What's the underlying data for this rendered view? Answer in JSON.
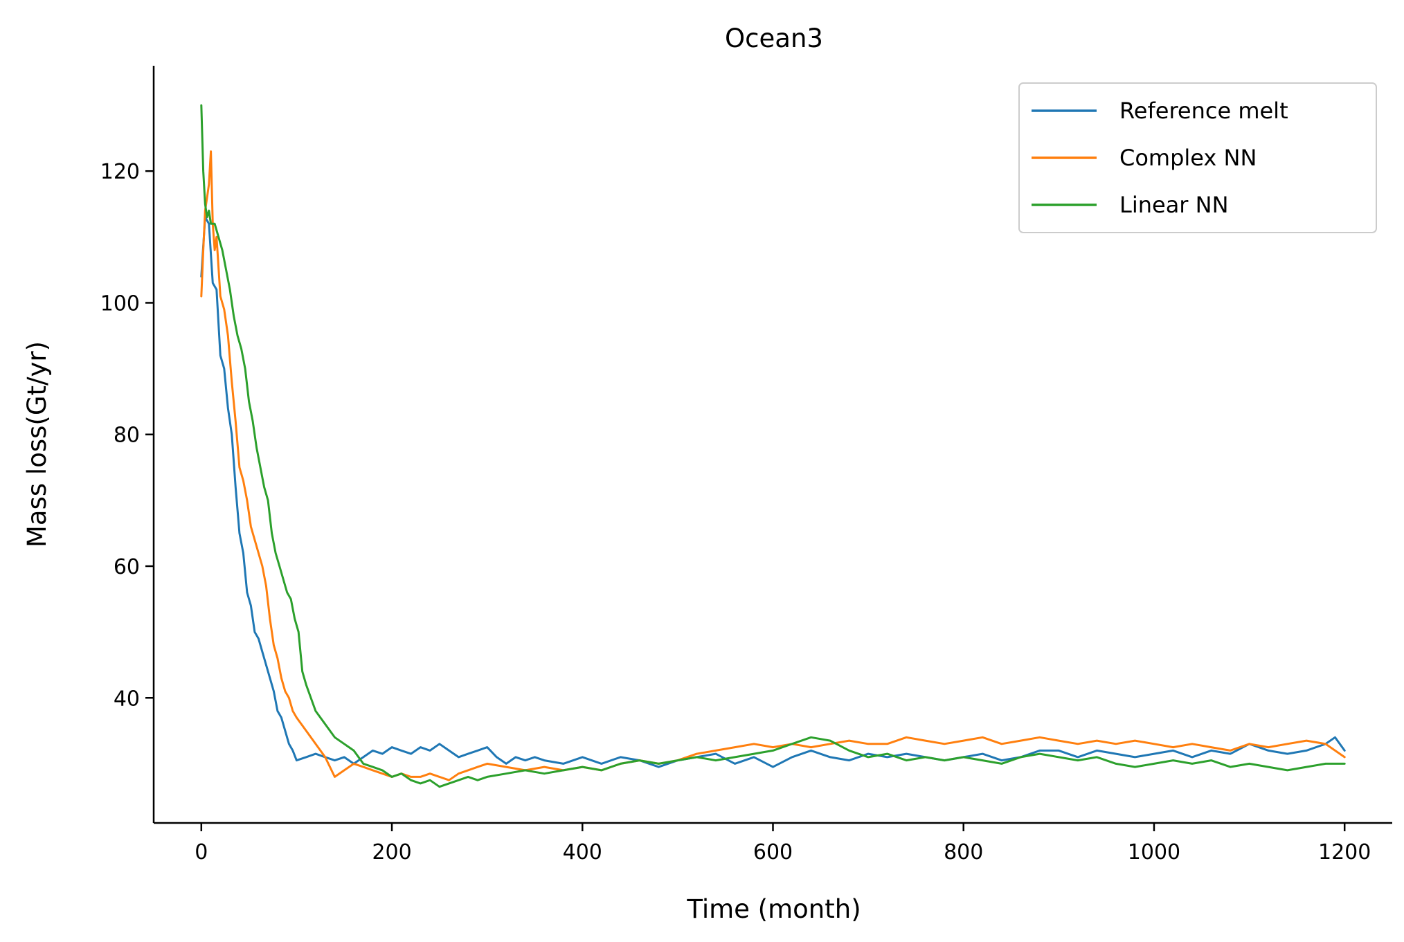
{
  "chart_data": {
    "type": "line",
    "title": "Ocean3",
    "xlabel": "Time (month)",
    "ylabel": "Mass loss(Gt/yr)",
    "xlim": [
      -50,
      1250
    ],
    "ylim": [
      21,
      136
    ],
    "xticks": [
      0,
      200,
      400,
      600,
      800,
      1000,
      1200
    ],
    "yticks": [
      40,
      60,
      80,
      100,
      120
    ],
    "grid": false,
    "legend_position": "top-right",
    "series": [
      {
        "name": "Reference melt",
        "color": "#1f77b4",
        "x": [
          0,
          4,
          8,
          12,
          16,
          20,
          24,
          28,
          32,
          36,
          40,
          44,
          48,
          52,
          56,
          60,
          64,
          68,
          72,
          76,
          80,
          84,
          88,
          92,
          96,
          100,
          110,
          120,
          130,
          140,
          150,
          160,
          170,
          180,
          190,
          200,
          210,
          220,
          230,
          240,
          250,
          260,
          270,
          280,
          290,
          300,
          310,
          320,
          330,
          340,
          350,
          360,
          380,
          400,
          420,
          440,
          460,
          480,
          500,
          520,
          540,
          560,
          580,
          600,
          620,
          640,
          660,
          680,
          700,
          720,
          740,
          760,
          780,
          800,
          820,
          840,
          860,
          880,
          900,
          920,
          940,
          960,
          980,
          1000,
          1020,
          1040,
          1060,
          1080,
          1100,
          1120,
          1140,
          1160,
          1180,
          1190,
          1200
        ],
        "values": [
          104,
          113,
          112,
          103,
          102,
          92,
          90,
          84,
          80,
          72,
          65,
          62,
          56,
          54,
          50,
          49,
          47,
          45,
          43,
          41,
          38,
          37,
          35,
          33,
          32,
          30.5,
          31,
          31.5,
          31,
          30.5,
          31,
          30,
          31,
          32,
          31.5,
          32.5,
          32,
          31.5,
          32.5,
          32,
          33,
          32,
          31,
          31.5,
          32,
          32.5,
          31,
          30,
          31,
          30.5,
          31,
          30.5,
          30,
          31,
          30,
          31,
          30.5,
          29.5,
          30.5,
          31,
          31.5,
          30,
          31,
          29.5,
          31,
          32,
          31,
          30.5,
          31.5,
          31,
          31.5,
          31,
          30.5,
          31,
          31.5,
          30.5,
          31,
          32,
          32,
          31,
          32,
          31.5,
          31,
          31.5,
          32,
          31,
          32,
          31.5,
          33,
          32,
          31.5,
          32,
          33,
          34,
          32
        ]
      },
      {
        "name": "Complex NN",
        "color": "#ff7f0e",
        "x": [
          0,
          2,
          4,
          6,
          8,
          10,
          12,
          14,
          16,
          20,
          24,
          28,
          32,
          36,
          40,
          44,
          48,
          52,
          56,
          60,
          64,
          68,
          72,
          76,
          80,
          84,
          88,
          92,
          96,
          100,
          110,
          120,
          130,
          140,
          150,
          160,
          170,
          180,
          190,
          200,
          210,
          220,
          230,
          240,
          250,
          260,
          270,
          280,
          290,
          300,
          320,
          340,
          360,
          380,
          400,
          420,
          440,
          460,
          480,
          500,
          520,
          540,
          560,
          580,
          600,
          620,
          640,
          660,
          680,
          700,
          720,
          740,
          760,
          780,
          800,
          820,
          840,
          860,
          880,
          900,
          920,
          940,
          960,
          980,
          1000,
          1020,
          1040,
          1060,
          1080,
          1100,
          1120,
          1140,
          1160,
          1180,
          1200
        ],
        "values": [
          101,
          108,
          114,
          116,
          118,
          123,
          112,
          108,
          110,
          101,
          99,
          95,
          88,
          82,
          75,
          73,
          70,
          66,
          64,
          62,
          60,
          57,
          52,
          48,
          46,
          43,
          41,
          40,
          38,
          37,
          35,
          33,
          31,
          28,
          29,
          30,
          29.5,
          29,
          28.5,
          28,
          28.5,
          28,
          28,
          28.5,
          28,
          27.5,
          28.5,
          29,
          29.5,
          30,
          29.5,
          29,
          29.5,
          29,
          29.5,
          29,
          30,
          30.5,
          30,
          30.5,
          31.5,
          32,
          32.5,
          33,
          32.5,
          33,
          32.5,
          33,
          33.5,
          33,
          33,
          34,
          33.5,
          33,
          33.5,
          34,
          33,
          33.5,
          34,
          33.5,
          33,
          33.5,
          33,
          33.5,
          33,
          32.5,
          33,
          32.5,
          32,
          33,
          32.5,
          33,
          33.5,
          33,
          31
        ]
      },
      {
        "name": "Linear NN",
        "color": "#2ca02c",
        "x": [
          0,
          2,
          4,
          6,
          8,
          10,
          14,
          18,
          22,
          26,
          30,
          34,
          38,
          42,
          46,
          50,
          54,
          58,
          62,
          66,
          70,
          74,
          78,
          82,
          86,
          90,
          94,
          98,
          102,
          106,
          110,
          120,
          130,
          140,
          150,
          160,
          170,
          180,
          190,
          200,
          210,
          220,
          230,
          240,
          250,
          260,
          270,
          280,
          290,
          300,
          320,
          340,
          360,
          380,
          400,
          420,
          440,
          460,
          480,
          500,
          520,
          540,
          560,
          580,
          600,
          620,
          640,
          660,
          680,
          700,
          720,
          740,
          760,
          780,
          800,
          820,
          840,
          860,
          880,
          900,
          920,
          940,
          960,
          980,
          1000,
          1020,
          1040,
          1060,
          1080,
          1100,
          1120,
          1140,
          1160,
          1180,
          1200
        ],
        "values": [
          130,
          120,
          115,
          113,
          114,
          112,
          112,
          110,
          108,
          105,
          102,
          98,
          95,
          93,
          90,
          85,
          82,
          78,
          75,
          72,
          70,
          65,
          62,
          60,
          58,
          56,
          55,
          52,
          50,
          44,
          42,
          38,
          36,
          34,
          33,
          32,
          30,
          29.5,
          29,
          28,
          28.5,
          27.5,
          27,
          27.5,
          26.5,
          27,
          27.5,
          28,
          27.5,
          28,
          28.5,
          29,
          28.5,
          29,
          29.5,
          29,
          30,
          30.5,
          30,
          30.5,
          31,
          30.5,
          31,
          31.5,
          32,
          33,
          34,
          33.5,
          32,
          31,
          31.5,
          30.5,
          31,
          30.5,
          31,
          30.5,
          30,
          31,
          31.5,
          31,
          30.5,
          31,
          30,
          29.5,
          30,
          30.5,
          30,
          30.5,
          29.5,
          30,
          29.5,
          29,
          29.5,
          30,
          30
        ]
      }
    ]
  }
}
